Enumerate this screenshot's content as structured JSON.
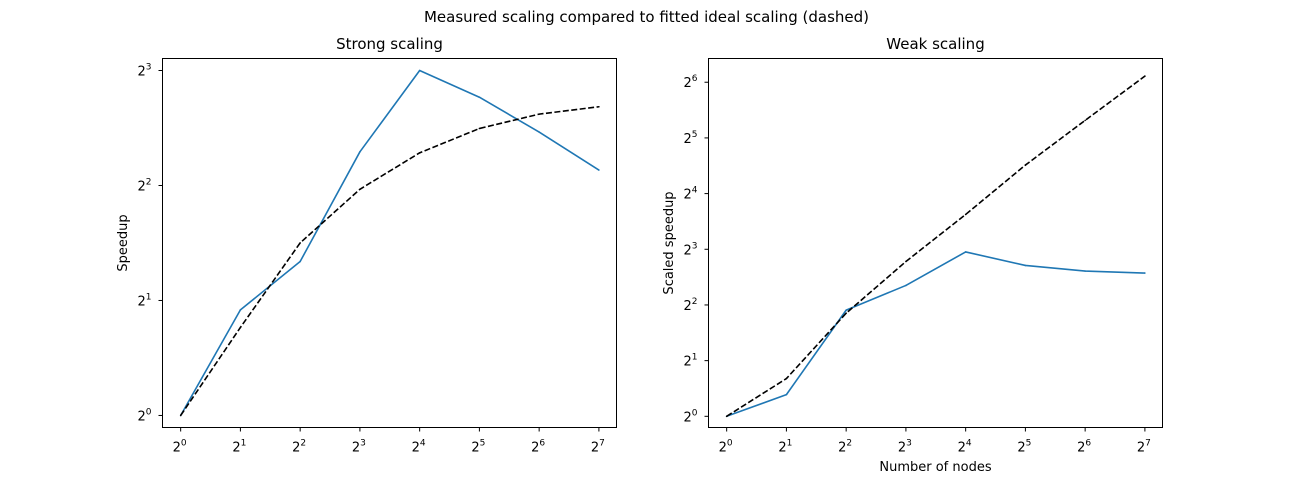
{
  "figure": {
    "suptitle": "Measured scaling compared to fitted ideal scaling (dashed)"
  },
  "colors": {
    "measured": "#1f77b4",
    "ideal": "#000000"
  },
  "chart_data": [
    {
      "type": "line",
      "title": "Strong scaling",
      "xlabel": "",
      "ylabel": "Speedup",
      "x_scale": "log2",
      "y_scale": "log2",
      "x": [
        1,
        2,
        4,
        8,
        16,
        32,
        64,
        128
      ],
      "x_ticks": [
        1,
        2,
        4,
        8,
        16,
        32,
        64,
        128
      ],
      "x_tick_labels": [
        {
          "base": "2",
          "exp": "0"
        },
        {
          "base": "2",
          "exp": "1"
        },
        {
          "base": "2",
          "exp": "2"
        },
        {
          "base": "2",
          "exp": "3"
        },
        {
          "base": "2",
          "exp": "4"
        },
        {
          "base": "2",
          "exp": "5"
        },
        {
          "base": "2",
          "exp": "6"
        },
        {
          "base": "2",
          "exp": "7"
        }
      ],
      "y_ticks": [
        1,
        2,
        4,
        8
      ],
      "y_tick_labels": [
        {
          "base": "2",
          "exp": "0"
        },
        {
          "base": "2",
          "exp": "1"
        },
        {
          "base": "2",
          "exp": "2"
        },
        {
          "base": "2",
          "exp": "3"
        }
      ],
      "xlim": [
        0.81,
        157
      ],
      "ylim": [
        0.93,
        8.6
      ],
      "grid": false,
      "series": [
        {
          "key": "measured",
          "style": "solid",
          "values": [
            1.0,
            1.89,
            2.53,
            4.9,
            8.0,
            6.81,
            5.52,
            4.39
          ]
        },
        {
          "key": "ideal",
          "style": "dashed",
          "values": [
            1.0,
            1.7,
            2.83,
            3.91,
            4.87,
            5.64,
            6.15,
            6.43
          ]
        }
      ]
    },
    {
      "type": "line",
      "title": "Weak scaling",
      "xlabel": "Number of nodes",
      "ylabel": "Scaled speedup",
      "x_scale": "log2",
      "y_scale": "log2",
      "x": [
        1,
        2,
        4,
        8,
        16,
        32,
        64,
        128
      ],
      "x_ticks": [
        1,
        2,
        4,
        8,
        16,
        32,
        64,
        128
      ],
      "x_tick_labels": [
        {
          "base": "2",
          "exp": "0"
        },
        {
          "base": "2",
          "exp": "1"
        },
        {
          "base": "2",
          "exp": "2"
        },
        {
          "base": "2",
          "exp": "3"
        },
        {
          "base": "2",
          "exp": "4"
        },
        {
          "base": "2",
          "exp": "5"
        },
        {
          "base": "2",
          "exp": "6"
        },
        {
          "base": "2",
          "exp": "7"
        }
      ],
      "y_ticks": [
        1,
        2,
        4,
        8,
        16,
        32,
        64
      ],
      "y_tick_labels": [
        {
          "base": "2",
          "exp": "0"
        },
        {
          "base": "2",
          "exp": "1"
        },
        {
          "base": "2",
          "exp": "2"
        },
        {
          "base": "2",
          "exp": "3"
        },
        {
          "base": "2",
          "exp": "4"
        },
        {
          "base": "2",
          "exp": "5"
        },
        {
          "base": "2",
          "exp": "6"
        }
      ],
      "xlim": [
        0.81,
        157
      ],
      "ylim": [
        0.87,
        86
      ],
      "grid": false,
      "series": [
        {
          "key": "measured",
          "style": "solid",
          "values": [
            1.0,
            1.31,
            3.75,
            5.1,
            7.74,
            6.54,
            6.1,
            5.95
          ]
        },
        {
          "key": "ideal",
          "style": "dashed",
          "values": [
            1.0,
            1.6,
            3.61,
            6.87,
            12.34,
            22.82,
            39.81,
            69.07
          ]
        }
      ]
    }
  ]
}
